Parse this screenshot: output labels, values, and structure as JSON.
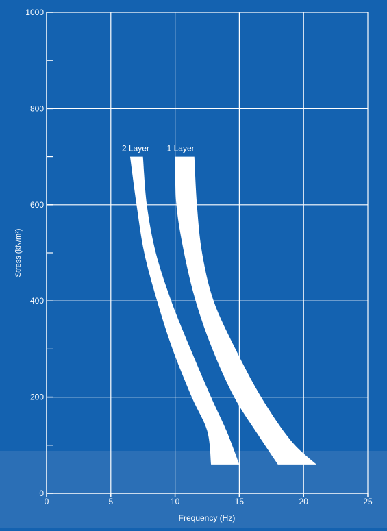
{
  "chart_data": {
    "type": "area",
    "xlabel": "Frequency (Hz)",
    "ylabel": "Stress (kN/m²)",
    "xlim": [
      0,
      25
    ],
    "ylim": [
      0,
      1000
    ],
    "x_ticks": [
      0,
      5,
      10,
      15,
      20,
      25
    ],
    "y_ticks": [
      0,
      200,
      400,
      600,
      800,
      1000
    ],
    "y_minor_ticks": [
      100,
      300,
      500,
      700,
      900
    ],
    "grid": true,
    "colors": {
      "background": "#1462b0",
      "band_lower_background": "#2b6fb6",
      "grid": "#ffffff",
      "series": "#ffffff"
    },
    "series": [
      {
        "name": "2 Layer",
        "lower": [
          [
            6.5,
            700
          ],
          [
            7.0,
            600
          ],
          [
            7.6,
            500
          ],
          [
            8.6,
            400
          ],
          [
            9.8,
            300
          ],
          [
            11.3,
            200
          ],
          [
            12.5,
            130
          ],
          [
            12.8,
            60
          ]
        ],
        "upper": [
          [
            7.5,
            700
          ],
          [
            7.8,
            600
          ],
          [
            8.5,
            500
          ],
          [
            9.7,
            400
          ],
          [
            11.2,
            300
          ],
          [
            12.8,
            200
          ],
          [
            14.0,
            130
          ],
          [
            15.0,
            60
          ]
        ]
      },
      {
        "name": "1 Layer",
        "lower": [
          [
            10.0,
            700
          ],
          [
            10.1,
            600
          ],
          [
            10.7,
            500
          ],
          [
            11.6,
            400
          ],
          [
            12.9,
            300
          ],
          [
            14.6,
            200
          ],
          [
            16.5,
            120
          ],
          [
            18.0,
            60
          ]
        ],
        "upper": [
          [
            11.5,
            700
          ],
          [
            11.7,
            600
          ],
          [
            12.1,
            500
          ],
          [
            13.0,
            400
          ],
          [
            14.7,
            300
          ],
          [
            16.7,
            200
          ],
          [
            19.0,
            110
          ],
          [
            21.0,
            60
          ]
        ]
      }
    ]
  }
}
